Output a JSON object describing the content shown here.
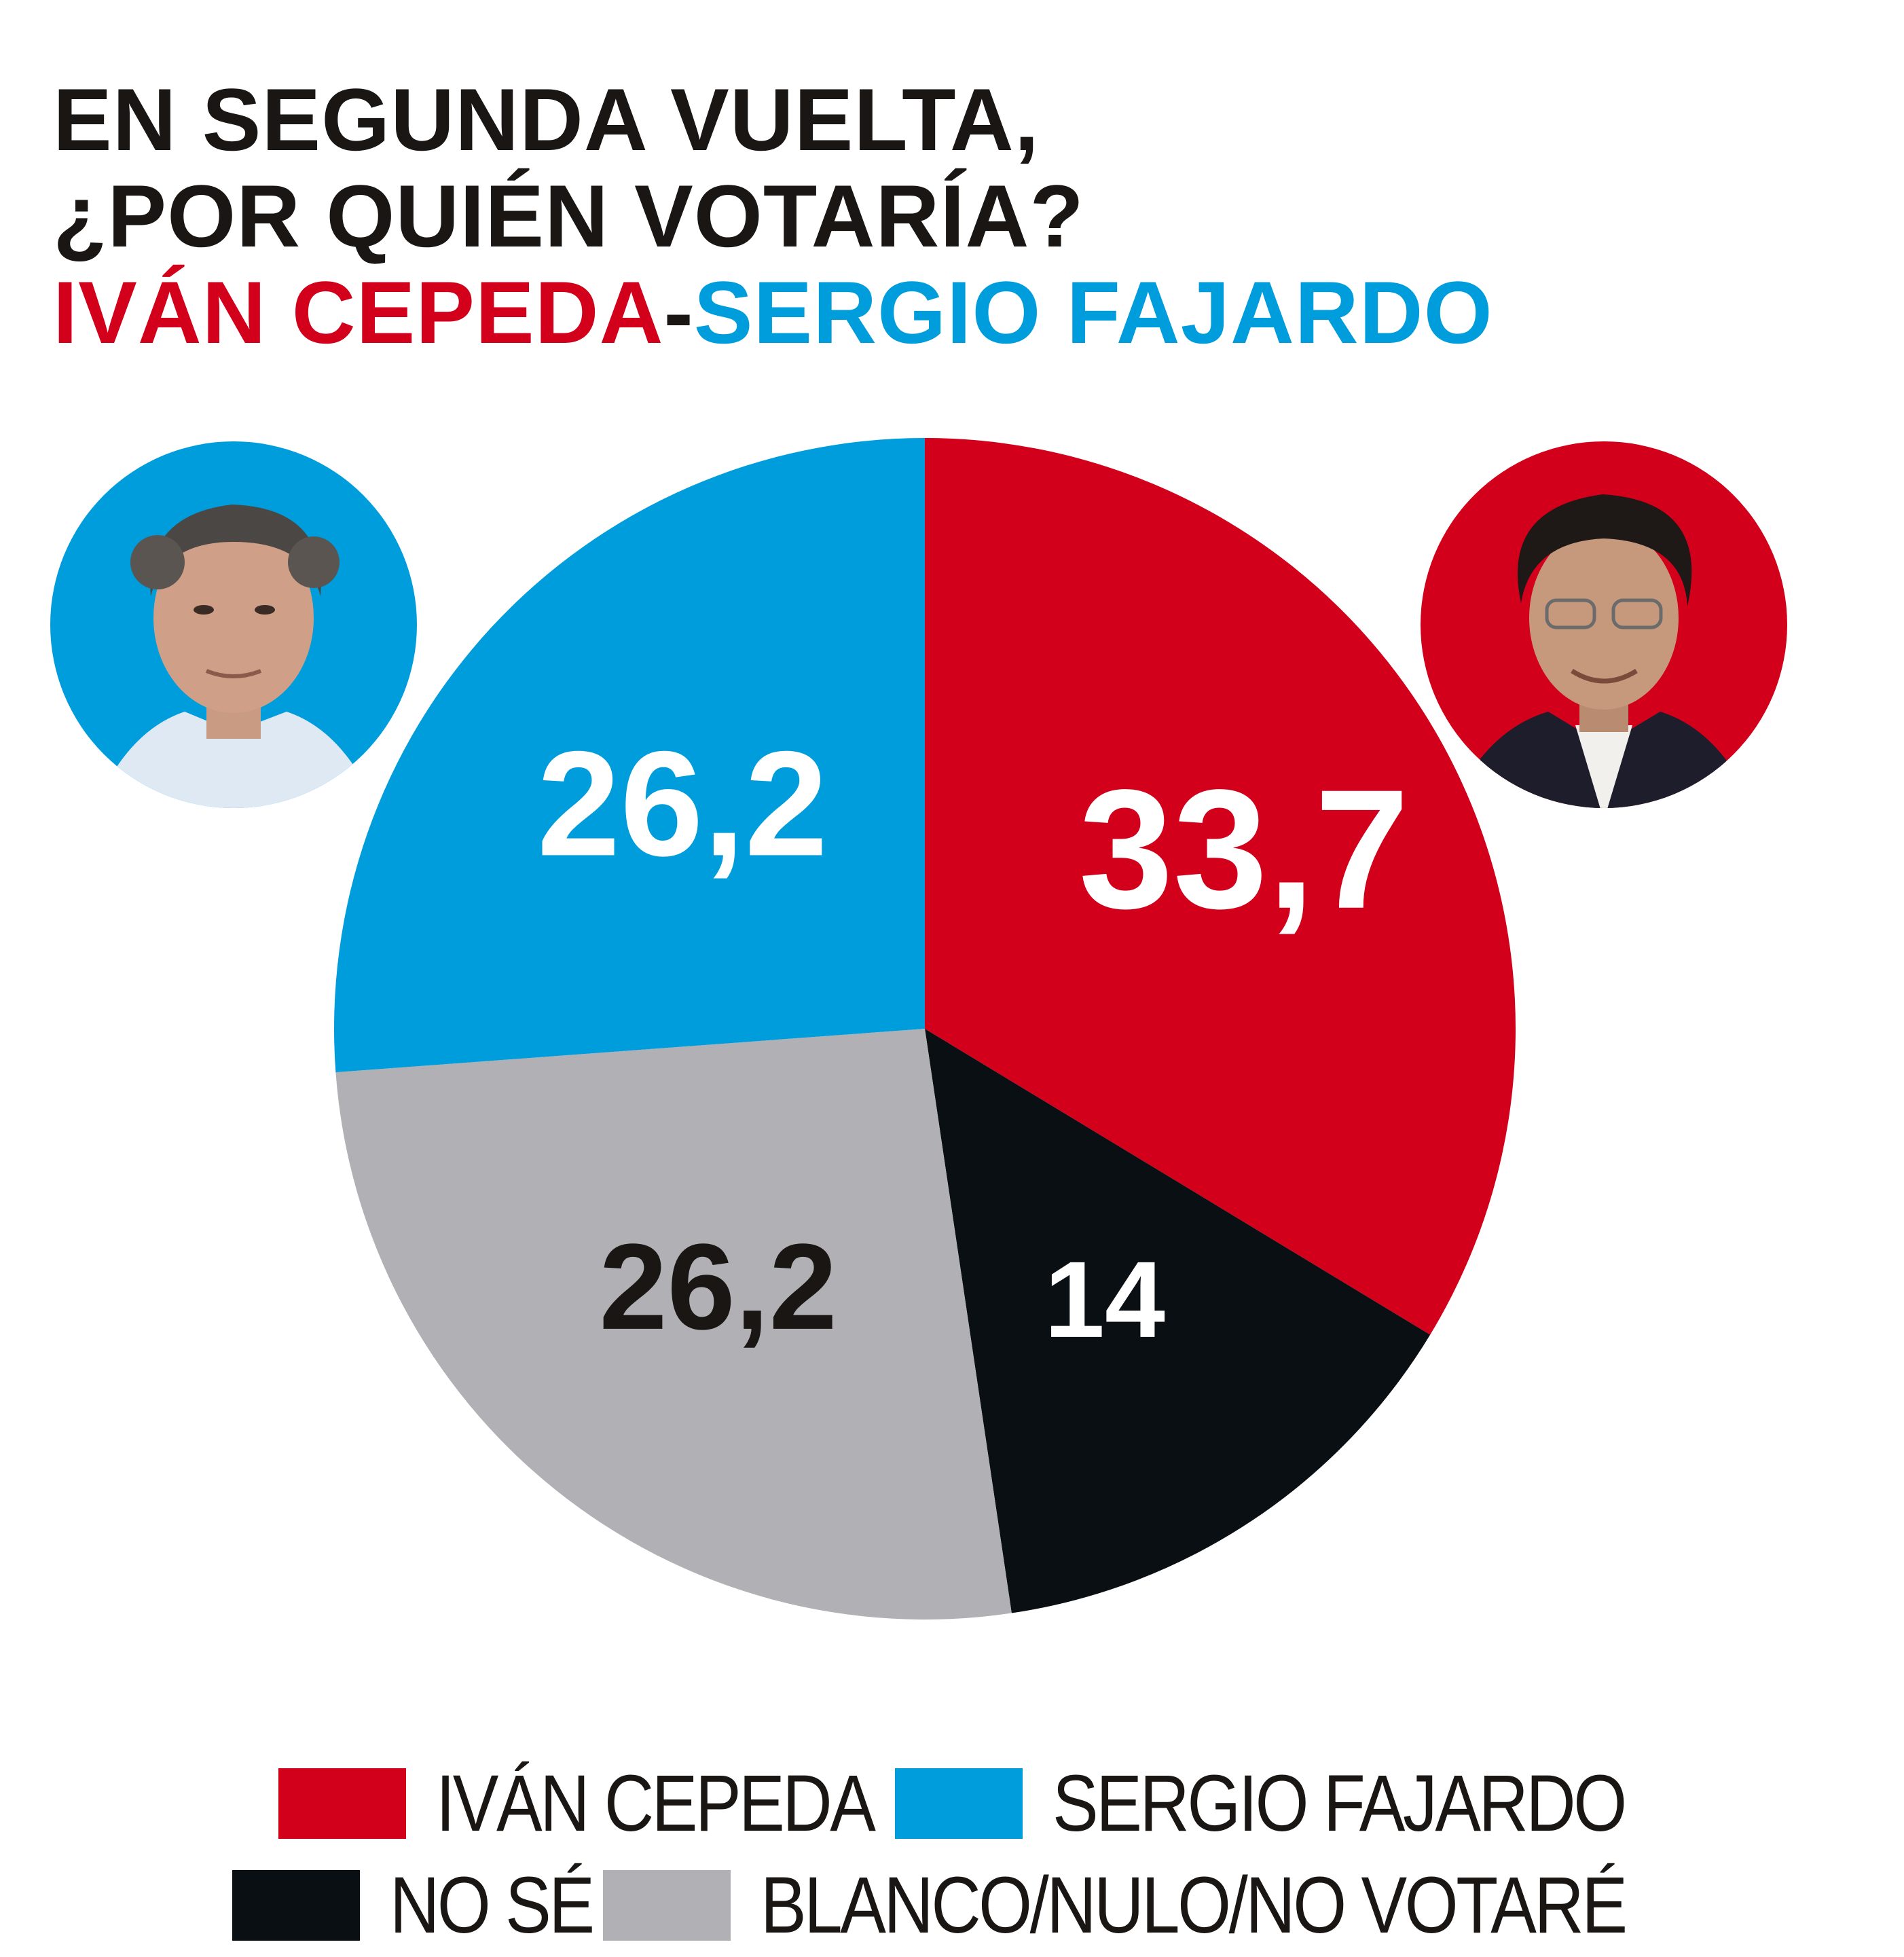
{
  "title": {
    "line1": "EN SEGUNDA VUELTA,",
    "line2": "¿POR QUIÉN VOTARÍA?",
    "candidate_red": "IVÁN CEPEDA",
    "separator": "-",
    "candidate_blue": "SERGIO FAJARDO"
  },
  "colors": {
    "red": "#d2001a",
    "blue": "#009ddc",
    "black": "#0a0f14",
    "gray": "#b1b0b5"
  },
  "chart_data": {
    "type": "pie",
    "start_direction": "top",
    "order": "clockwise",
    "slices": [
      {
        "label": "IVÁN CEPEDA",
        "value": 33.7,
        "display": "33,7",
        "color": "#d2001a",
        "text_color": "#ffffff"
      },
      {
        "label": "NO SÉ",
        "value": 14,
        "display": "14",
        "color": "#0a0f14",
        "text_color": "#ffffff"
      },
      {
        "label": "BLANCO/NULO/NO VOTARÉ",
        "value": 26.2,
        "display": "26,2",
        "color": "#b1b0b5",
        "text_color": "#1a1614"
      },
      {
        "label": "SERGIO FAJARDO",
        "value": 26.2,
        "display": "26,2",
        "color": "#009ddc",
        "text_color": "#ffffff"
      }
    ]
  },
  "legend": {
    "items": [
      {
        "label": "IVÁN CEPEDA",
        "color": "#d2001a"
      },
      {
        "label": "SERGIO FAJARDO",
        "color": "#009ddc"
      },
      {
        "label": "NO SÉ",
        "color": "#0a0f14"
      },
      {
        "label": "BLANCO/NULO/NO VOTARÉ",
        "color": "#b1b0b5"
      }
    ]
  }
}
